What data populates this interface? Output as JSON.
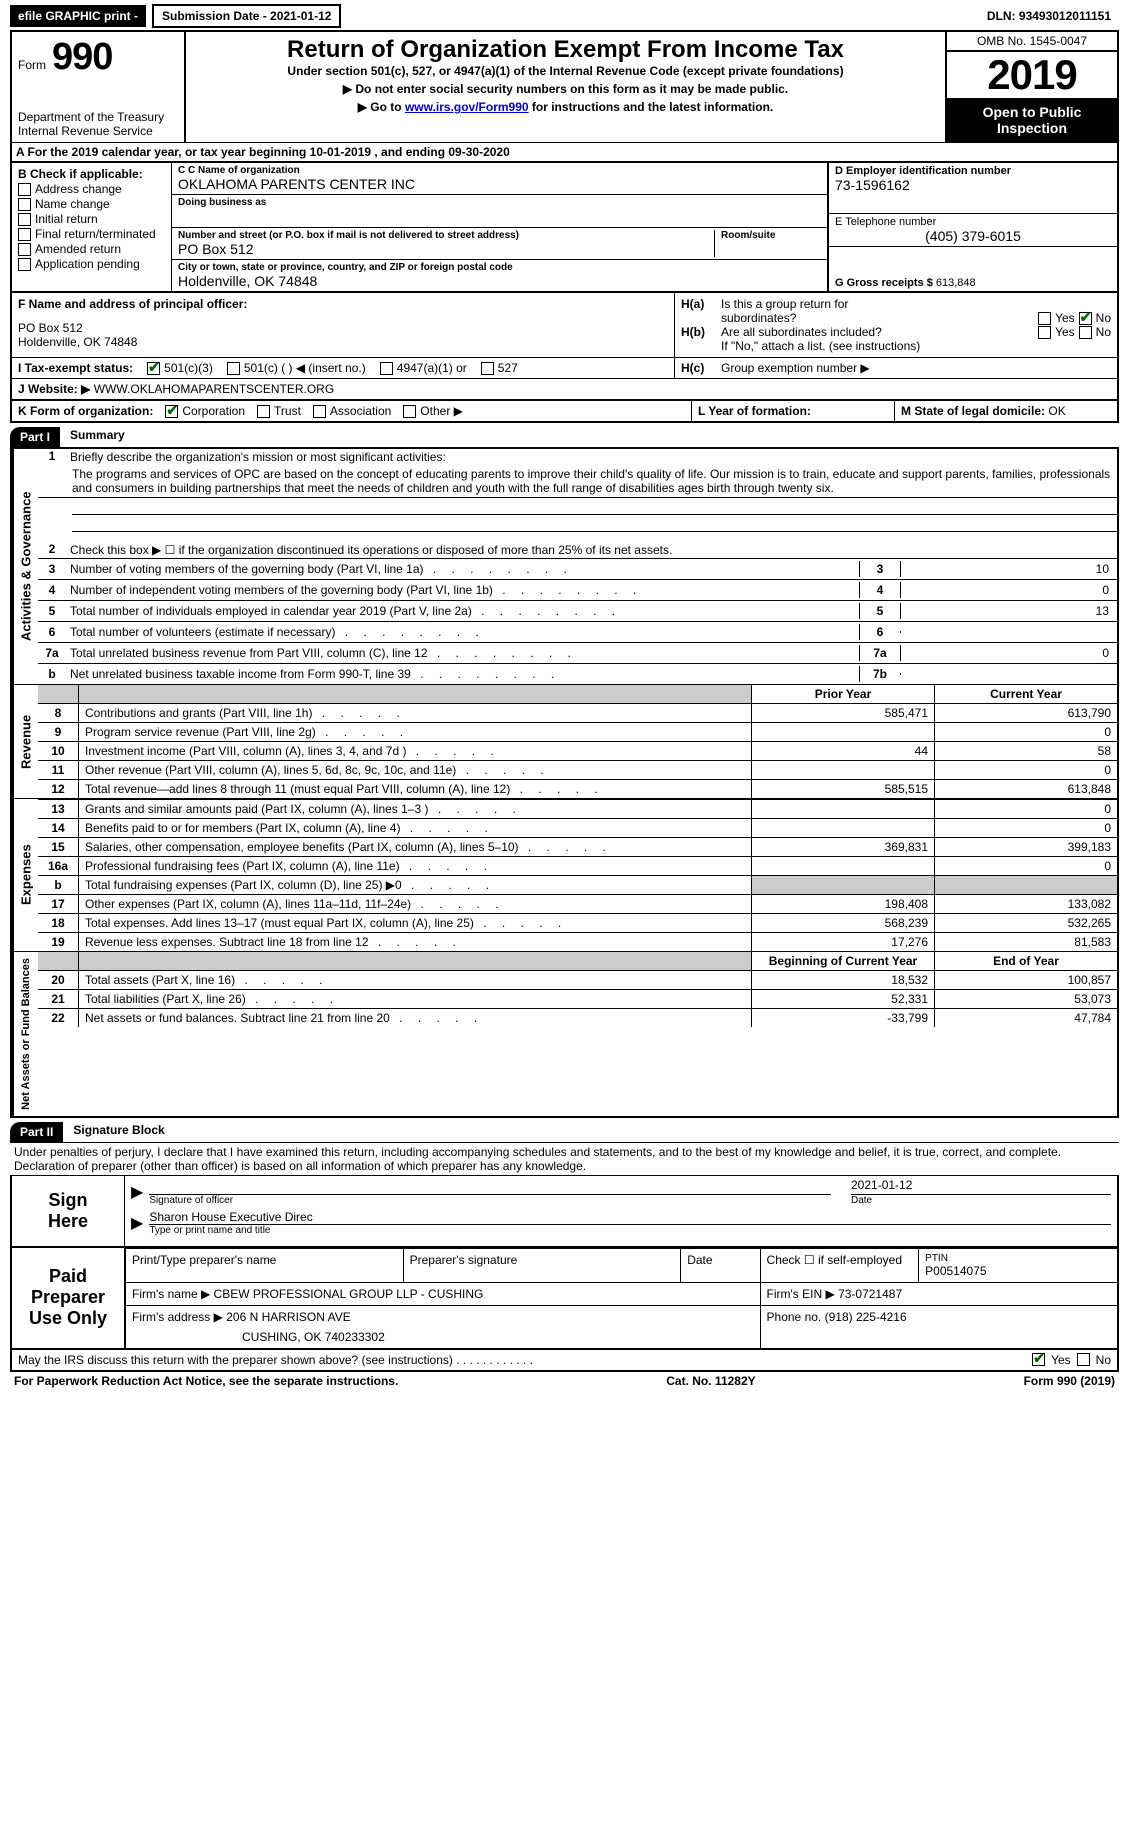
{
  "topbar": {
    "efile": "efile GRAPHIC print -",
    "submission": "Submission Date - 2021-01-12",
    "dln_label": "DLN:",
    "dln": "93493012011151"
  },
  "header": {
    "form_word": "Form",
    "form_num": "990",
    "dept": "Department of the Treasury\nInternal Revenue Service",
    "title": "Return of Organization Exempt From Income Tax",
    "subtitle": "Under section 501(c), 527, or 4947(a)(1) of the Internal Revenue Code (except private foundations)",
    "warn1": "▶ Do not enter social security numbers on this form as it may be made public.",
    "warn2_prefix": "▶ Go to ",
    "warn2_link": "www.irs.gov/Form990",
    "warn2_suffix": " for instructions and the latest information.",
    "omb": "OMB No. 1545-0047",
    "year": "2019",
    "inspect": "Open to Public Inspection"
  },
  "sectionA": "A For the 2019 calendar year, or tax year beginning 10-01-2019     , and ending 09-30-2020",
  "colB": {
    "label": "B Check if applicable:",
    "items": [
      "Address change",
      "Name change",
      "Initial return",
      "Final return/terminated",
      "Amended return",
      "Application pending"
    ]
  },
  "colC": {
    "name_label": "C Name of organization",
    "name": "OKLAHOMA PARENTS CENTER INC",
    "dba_label": "Doing business as",
    "addr_label": "Number and street (or P.O. box if mail is not delivered to street address)",
    "room_label": "Room/suite",
    "addr": "PO Box 512",
    "city_label": "City or town, state or province, country, and ZIP or foreign postal code",
    "city": "Holdenville, OK   74848"
  },
  "colD": {
    "ein_label": "D Employer identification number",
    "ein": "73-1596162",
    "tel_label": "E Telephone number",
    "tel": "(405) 379-6015",
    "gross_label": "G Gross receipts $",
    "gross": "613,848"
  },
  "principal": {
    "label": "F Name and address of principal officer:",
    "addr1": "PO Box 512",
    "addr2": "Holdenville, OK   74848"
  },
  "hSection": {
    "ha": "Is this a group return for",
    "ha2": "subordinates?",
    "hb": "Are all subordinates included?",
    "hnote": "If \"No,\" attach a list. (see instructions)",
    "hc": "Group exemption number ▶",
    "yes": "Yes",
    "no": "No"
  },
  "taxStatus": {
    "label": "I   Tax-exempt status:",
    "opts": [
      "501(c)(3)",
      "501(c) (   ) ◀ (insert no.)",
      "4947(a)(1) or",
      "527"
    ]
  },
  "website": {
    "label": "J   Website: ▶",
    "val": "WWW.OKLAHOMAPARENTSCENTER.ORG"
  },
  "orgForm": {
    "label": "K Form of organization:",
    "opts": [
      "Corporation",
      "Trust",
      "Association",
      "Other ▶"
    ],
    "l_label": "L Year of formation:",
    "m_label": "M State of legal domicile:",
    "m_val": "OK"
  },
  "part1": {
    "header": "Part I",
    "title": "Summary"
  },
  "governance": {
    "vert": "Activities & Governance",
    "line1_label": "Briefly describe the organization's mission or most significant activities:",
    "mission": "The programs and services of OPC are based on the concept of educating parents to improve their child's quality of life. Our mission is to train, educate and support parents, families, professionals and consumers in building partnerships that meet the needs of children and youth with the full range of disabilities ages birth through twenty six.",
    "line2": "Check this box ▶ ☐  if the organization discontinued its operations or disposed of more than 25% of its net assets.",
    "rows": [
      {
        "n": "3",
        "t": "Number of voting members of the governing body (Part VI, line 1a)",
        "box": "3",
        "v": "10"
      },
      {
        "n": "4",
        "t": "Number of independent voting members of the governing body (Part VI, line 1b)",
        "box": "4",
        "v": "0"
      },
      {
        "n": "5",
        "t": "Total number of individuals employed in calendar year 2019 (Part V, line 2a)",
        "box": "5",
        "v": "13"
      },
      {
        "n": "6",
        "t": "Total number of volunteers (estimate if necessary)",
        "box": "6",
        "v": ""
      },
      {
        "n": "7a",
        "t": "Total unrelated business revenue from Part VIII, column (C), line 12",
        "box": "7a",
        "v": "0"
      },
      {
        "n": "b",
        "t": "Net unrelated business taxable income from Form 990-T, line 39",
        "box": "7b",
        "v": ""
      }
    ]
  },
  "revenue": {
    "vert": "Revenue",
    "header_prior": "Prior Year",
    "header_current": "Current Year",
    "rows": [
      {
        "n": "8",
        "t": "Contributions and grants (Part VIII, line 1h)",
        "p": "585,471",
        "c": "613,790"
      },
      {
        "n": "9",
        "t": "Program service revenue (Part VIII, line 2g)",
        "p": "",
        "c": "0"
      },
      {
        "n": "10",
        "t": "Investment income (Part VIII, column (A), lines 3, 4, and 7d )",
        "p": "44",
        "c": "58"
      },
      {
        "n": "11",
        "t": "Other revenue (Part VIII, column (A), lines 5, 6d, 8c, 9c, 10c, and 11e)",
        "p": "",
        "c": "0"
      },
      {
        "n": "12",
        "t": "Total revenue—add lines 8 through 11 (must equal Part VIII, column (A), line 12)",
        "p": "585,515",
        "c": "613,848"
      }
    ]
  },
  "expenses": {
    "vert": "Expenses",
    "rows": [
      {
        "n": "13",
        "t": "Grants and similar amounts paid (Part IX, column (A), lines 1–3 )",
        "p": "",
        "c": "0"
      },
      {
        "n": "14",
        "t": "Benefits paid to or for members (Part IX, column (A), line 4)",
        "p": "",
        "c": "0"
      },
      {
        "n": "15",
        "t": "Salaries, other compensation, employee benefits (Part IX, column (A), lines 5–10)",
        "p": "369,831",
        "c": "399,183"
      },
      {
        "n": "16a",
        "t": "Professional fundraising fees (Part IX, column (A), line 11e)",
        "p": "",
        "c": "0"
      },
      {
        "n": "b",
        "t": "Total fundraising expenses (Part IX, column (D), line 25) ▶0",
        "p": "shade",
        "c": "shade"
      },
      {
        "n": "17",
        "t": "Other expenses (Part IX, column (A), lines 11a–11d, 11f–24e)",
        "p": "198,408",
        "c": "133,082"
      },
      {
        "n": "18",
        "t": "Total expenses. Add lines 13–17 (must equal Part IX, column (A), line 25)",
        "p": "568,239",
        "c": "532,265"
      },
      {
        "n": "19",
        "t": "Revenue less expenses. Subtract line 18 from line 12",
        "p": "17,276",
        "c": "81,583"
      }
    ]
  },
  "netassets": {
    "vert": "Net Assets or Fund Balances",
    "header_begin": "Beginning of Current Year",
    "header_end": "End of Year",
    "rows": [
      {
        "n": "20",
        "t": "Total assets (Part X, line 16)",
        "p": "18,532",
        "c": "100,857"
      },
      {
        "n": "21",
        "t": "Total liabilities (Part X, line 26)",
        "p": "52,331",
        "c": "53,073"
      },
      {
        "n": "22",
        "t": "Net assets or fund balances. Subtract line 21 from line 20",
        "p": "-33,799",
        "c": "47,784"
      }
    ]
  },
  "part2": {
    "header": "Part II",
    "title": "Signature Block",
    "declaration": "Under penalties of perjury, I declare that I have examined this return, including accompanying schedules and statements, and to the best of my knowledge and belief, it is true, correct, and complete. Declaration of preparer (other than officer) is based on all information of which preparer has any knowledge."
  },
  "sign": {
    "label": "Sign Here",
    "sig_officer": "Signature of officer",
    "date": "2021-01-12",
    "date_label": "Date",
    "name": "Sharon House  Executive Direc",
    "name_label": "Type or print name and title"
  },
  "preparer": {
    "label": "Paid Preparer Use Only",
    "print_label": "Print/Type preparer's name",
    "sig_label": "Preparer's signature",
    "date_label": "Date",
    "check_label": "Check ☐ if self-employed",
    "ptin_label": "PTIN",
    "ptin": "P00514075",
    "firm_name_label": "Firm's name      ▶",
    "firm_name": "CBEW PROFESSIONAL GROUP LLP - CUSHING",
    "firm_ein_label": "Firm's EIN ▶",
    "firm_ein": "73-0721487",
    "firm_addr_label": "Firm's address ▶",
    "firm_addr1": "206 N HARRISON AVE",
    "firm_addr2": "CUSHING, OK   740233302",
    "phone_label": "Phone no.",
    "phone": "(918) 225-4216"
  },
  "discuss": {
    "text": "May the IRS discuss this return with the preparer shown above? (see instructions)",
    "yes": "Yes",
    "no": "No"
  },
  "footer": {
    "left": "For Paperwork Reduction Act Notice, see the separate instructions.",
    "mid": "Cat. No. 11282Y",
    "right": "Form 990 (2019)"
  }
}
